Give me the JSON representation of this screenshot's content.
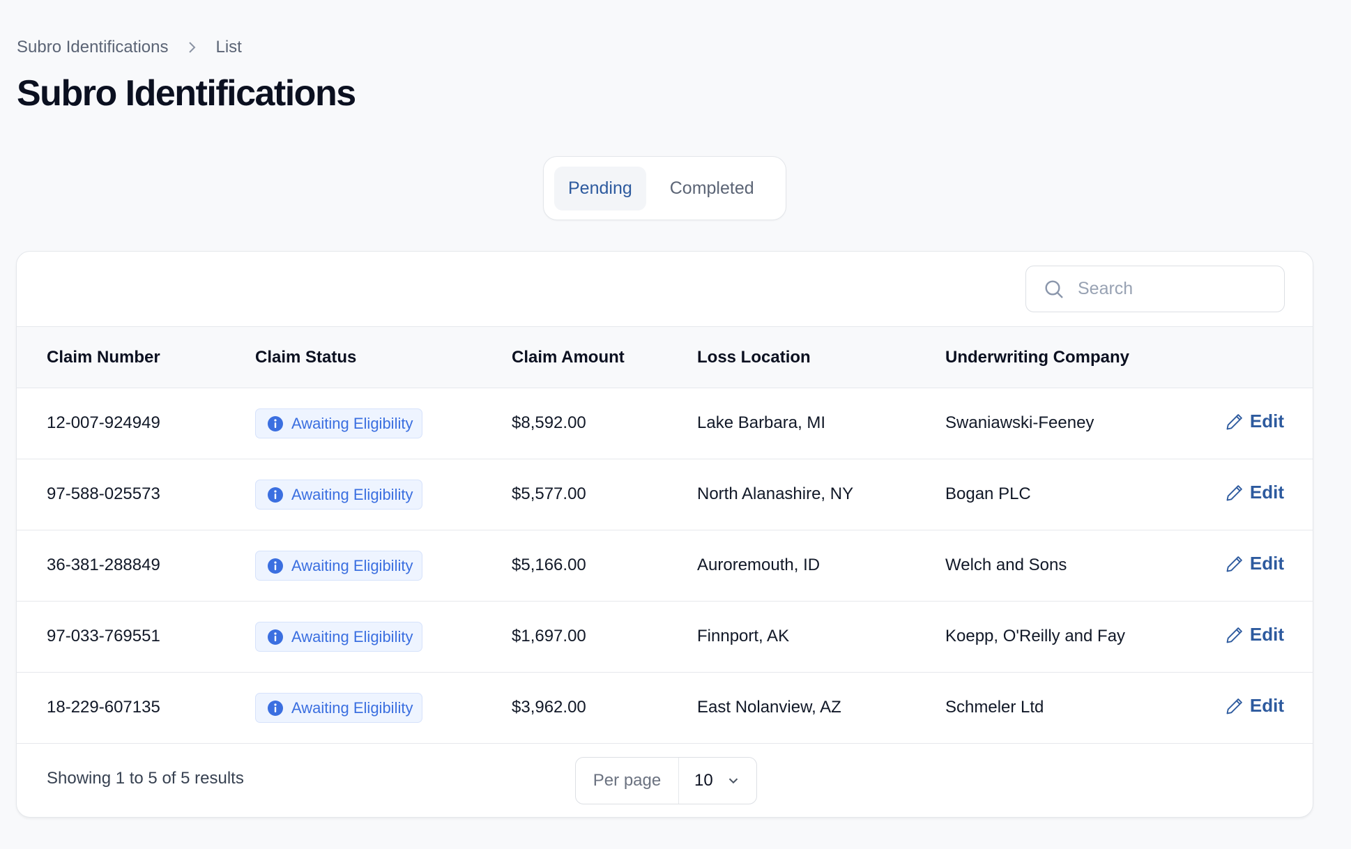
{
  "breadcrumb": {
    "items": [
      "Subro Identifications",
      "List"
    ],
    "separator_icon": "chevron-right-icon"
  },
  "page_title": "Subro Identifications",
  "tabs": [
    {
      "label": "Pending",
      "active": true
    },
    {
      "label": "Completed",
      "active": false
    }
  ],
  "search": {
    "placeholder": "Search",
    "value": ""
  },
  "table": {
    "columns": [
      "Claim Number",
      "Claim Status",
      "Claim Amount",
      "Loss Location",
      "Underwriting Company"
    ],
    "rows": [
      {
        "claim_number": "12-007-924949",
        "status": "Awaiting Eligibility",
        "amount": "$8,592.00",
        "location": "Lake Barbara, MI",
        "company": "Swaniawski-Feeney",
        "action": "Edit"
      },
      {
        "claim_number": "97-588-025573",
        "status": "Awaiting Eligibility",
        "amount": "$5,577.00",
        "location": "North Alanashire, NY",
        "company": "Bogan PLC",
        "action": "Edit"
      },
      {
        "claim_number": "36-381-288849",
        "status": "Awaiting Eligibility",
        "amount": "$5,166.00",
        "location": "Auroremouth, ID",
        "company": "Welch and Sons",
        "action": "Edit"
      },
      {
        "claim_number": "97-033-769551",
        "status": "Awaiting Eligibility",
        "amount": "$1,697.00",
        "location": "Finnport, AK",
        "company": "Koepp, O'Reilly and Fay",
        "action": "Edit"
      },
      {
        "claim_number": "18-229-607135",
        "status": "Awaiting Eligibility",
        "amount": "$3,962.00",
        "location": "East Nolanview, AZ",
        "company": "Schmeler Ltd",
        "action": "Edit"
      }
    ]
  },
  "footer": {
    "showing": "Showing 1 to 5 of 5 results",
    "per_page_label": "Per page",
    "per_page_value": "10"
  },
  "colors": {
    "accent": "#2d5a9e",
    "badge_text": "#3b6fe0",
    "badge_bg": "#eef4ff",
    "background": "#f8f9fb"
  }
}
